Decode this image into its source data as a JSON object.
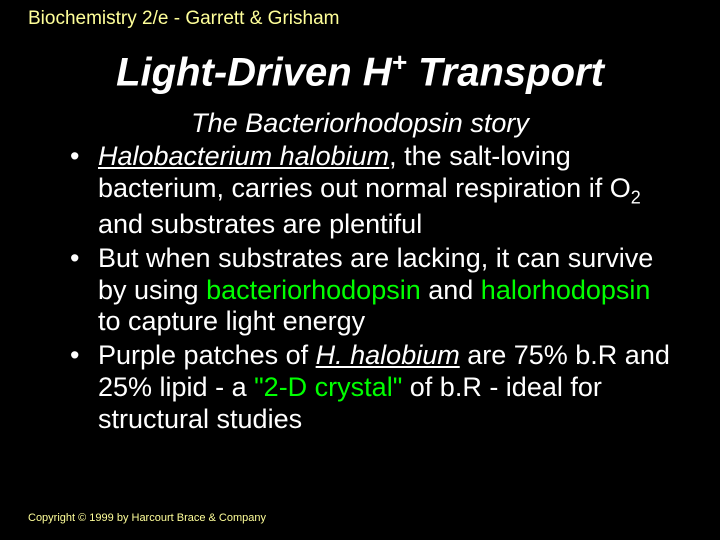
{
  "header": "Biochemistry 2/e - Garrett & Grisham",
  "title_pre": "Light-Driven H",
  "title_sup": "+",
  "title_post": " Transport",
  "subtitle": "The Bacteriorhodopsin story",
  "b1_italic": "Halobacterium halobium",
  "b1_t1": ", the salt-loving bacterium, carries out normal respiration if O",
  "b1_sub": "2",
  "b1_t2": " and substrates are plentiful",
  "b2_t1": "But when substrates are lacking, it can survive by using ",
  "b2_hl1": "bacteriorhodopsin",
  "b2_t2": " and ",
  "b2_hl2": "halorhodopsin",
  "b2_t3": " to capture light energy",
  "b3_t1": "Purple patches of ",
  "b3_italic": "H. halobium",
  "b3_t2": " are 75% b.R and 25% lipid - a ",
  "b3_hl": "\"2-D crystal\"",
  "b3_t3": " of b.R - ideal for structural studies",
  "footer": "Copyright © 1999 by Harcourt Brace & Company"
}
